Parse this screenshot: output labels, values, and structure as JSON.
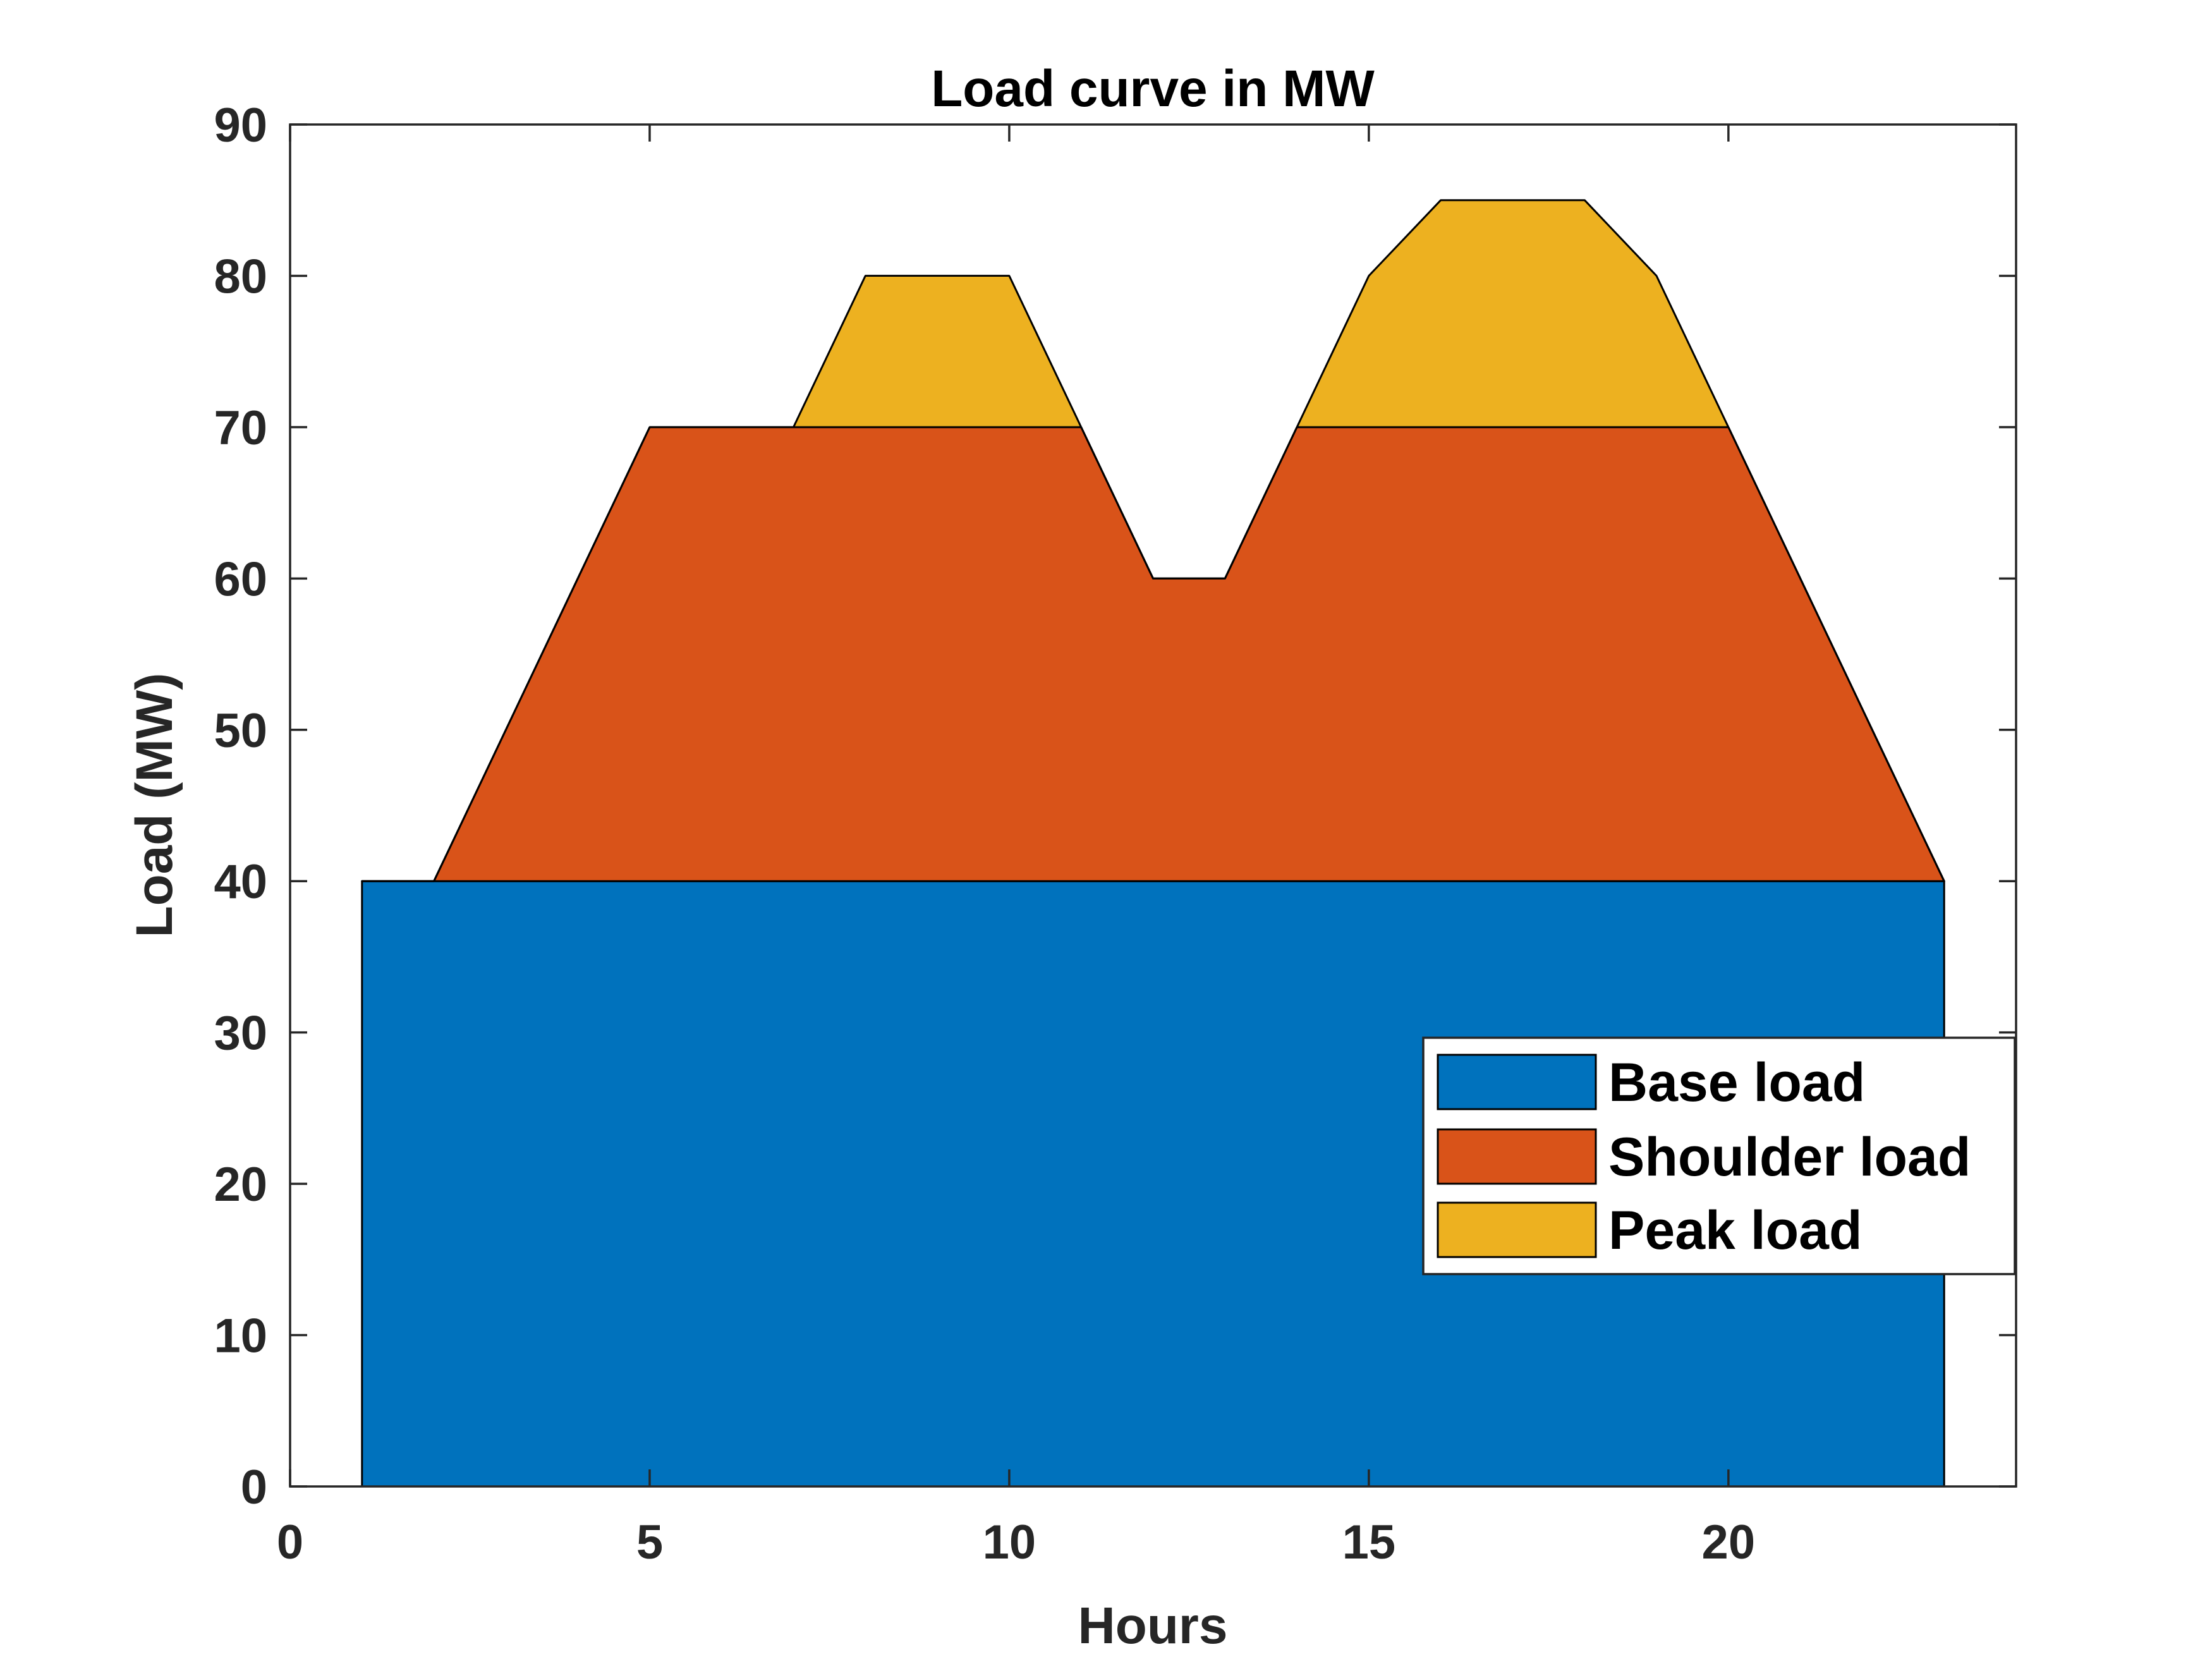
{
  "chart_data": {
    "type": "area",
    "title": "Load curve in MW",
    "xlabel": "Hours",
    "ylabel": "Load (MW)",
    "xlim": [
      0,
      24
    ],
    "ylim": [
      0,
      90
    ],
    "xticks": [
      0,
      5,
      10,
      15,
      20
    ],
    "yticks": [
      0,
      10,
      20,
      30,
      40,
      50,
      60,
      70,
      80,
      90
    ],
    "grid": false,
    "legend_position": "inside lower-right",
    "x": [
      1,
      2,
      3,
      4,
      5,
      6,
      7,
      8,
      9,
      10,
      11,
      12,
      13,
      14,
      15,
      16,
      17,
      18,
      19,
      20,
      21,
      22,
      23
    ],
    "series": [
      {
        "name": "Base load",
        "color": "#0072BD",
        "values": [
          40,
          40,
          40,
          40,
          40,
          40,
          40,
          40,
          40,
          40,
          40,
          40,
          40,
          40,
          40,
          40,
          40,
          40,
          40,
          40,
          40,
          40,
          40
        ]
      },
      {
        "name": "Shoulder load",
        "color": "#D95319",
        "values": [
          0,
          0,
          10,
          20,
          30,
          30,
          30,
          30,
          30,
          30,
          30,
          20,
          20,
          30,
          30,
          30,
          30,
          30,
          30,
          30,
          20,
          10,
          0
        ]
      },
      {
        "name": "Peak load",
        "color": "#EDB120",
        "values": [
          0,
          0,
          0,
          0,
          0,
          0,
          0,
          10,
          10,
          10,
          0,
          0,
          0,
          0,
          10,
          15,
          15,
          15,
          10,
          0,
          0,
          0,
          0
        ]
      }
    ]
  }
}
